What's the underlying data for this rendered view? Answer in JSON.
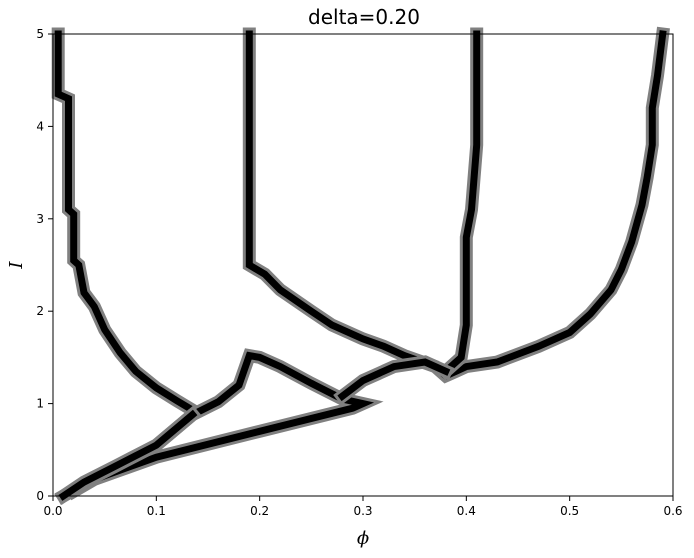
{
  "chart_data": {
    "type": "line",
    "title": "delta=0.20",
    "xlabel": "ϕ",
    "ylabel": "I",
    "xlim": [
      0.0,
      0.6
    ],
    "ylim": [
      0,
      5
    ],
    "xticks": [
      "0.0",
      "0.1",
      "0.2",
      "0.3",
      "0.4",
      "0.5",
      "0.6"
    ],
    "yticks": [
      "0",
      "1",
      "2",
      "3",
      "4",
      "5"
    ],
    "grid": false,
    "legend": "none",
    "line_color": "#000000",
    "halo_color": "#808080",
    "series": [
      {
        "points": [
          [
            0.005,
            5.0
          ],
          [
            0.005,
            4.35
          ],
          [
            0.015,
            4.3
          ],
          [
            0.015,
            3.1
          ],
          [
            0.02,
            3.05
          ],
          [
            0.02,
            2.55
          ],
          [
            0.025,
            2.5
          ],
          [
            0.03,
            2.2
          ],
          [
            0.04,
            2.05
          ],
          [
            0.05,
            1.8
          ],
          [
            0.065,
            1.55
          ],
          [
            0.08,
            1.35
          ],
          [
            0.1,
            1.17
          ],
          [
            0.12,
            1.03
          ],
          [
            0.135,
            0.93
          ]
        ]
      },
      {
        "points": [
          [
            0.19,
            5.0
          ],
          [
            0.19,
            2.5
          ],
          [
            0.205,
            2.4
          ],
          [
            0.22,
            2.23
          ],
          [
            0.25,
            2.0
          ],
          [
            0.27,
            1.85
          ],
          [
            0.3,
            1.7
          ],
          [
            0.32,
            1.62
          ],
          [
            0.34,
            1.52
          ],
          [
            0.37,
            1.4
          ],
          [
            0.38,
            1.3
          ],
          [
            0.39,
            1.35
          ],
          [
            0.4,
            1.4
          ],
          [
            0.43,
            1.45
          ],
          [
            0.47,
            1.62
          ],
          [
            0.5,
            1.77
          ],
          [
            0.52,
            1.97
          ],
          [
            0.54,
            2.23
          ],
          [
            0.55,
            2.45
          ],
          [
            0.56,
            2.75
          ],
          [
            0.57,
            3.15
          ],
          [
            0.575,
            3.45
          ],
          [
            0.58,
            3.8
          ],
          [
            0.58,
            4.2
          ],
          [
            0.585,
            4.55
          ],
          [
            0.59,
            5.0
          ]
        ]
      },
      {
        "points": [
          [
            0.41,
            5.0
          ],
          [
            0.41,
            3.8
          ],
          [
            0.405,
            3.1
          ],
          [
            0.4,
            2.8
          ],
          [
            0.4,
            1.85
          ],
          [
            0.395,
            1.5
          ],
          [
            0.38,
            1.35
          ]
        ]
      },
      {
        "points": [
          [
            0.01,
            0.0
          ],
          [
            0.05,
            0.25
          ],
          [
            0.1,
            0.55
          ],
          [
            0.135,
            0.88
          ],
          [
            0.16,
            1.02
          ],
          [
            0.18,
            1.2
          ],
          [
            0.19,
            1.52
          ],
          [
            0.2,
            1.5
          ],
          [
            0.22,
            1.4
          ],
          [
            0.25,
            1.22
          ],
          [
            0.28,
            1.05
          ],
          [
            0.3,
            1.0
          ],
          [
            0.29,
            0.95
          ],
          [
            0.2,
            0.7
          ],
          [
            0.1,
            0.42
          ],
          [
            0.04,
            0.18
          ],
          [
            0.02,
            0.05
          ]
        ]
      },
      {
        "points": [
          [
            0.01,
            0.0
          ],
          [
            0.03,
            0.15
          ],
          [
            0.06,
            0.32
          ],
          [
            0.1,
            0.55
          ],
          [
            0.135,
            0.88
          ]
        ]
      },
      {
        "points": [
          [
            0.28,
            1.08
          ],
          [
            0.3,
            1.25
          ],
          [
            0.33,
            1.4
          ],
          [
            0.36,
            1.45
          ],
          [
            0.38,
            1.35
          ]
        ]
      }
    ]
  }
}
